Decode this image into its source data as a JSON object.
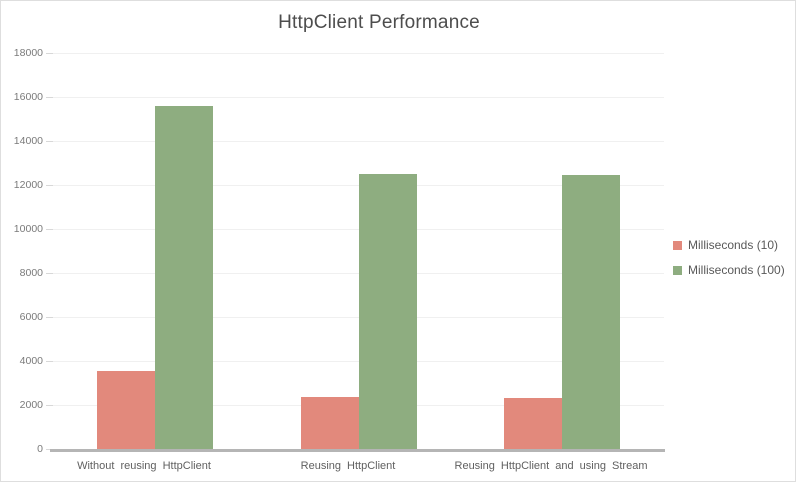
{
  "window": {
    "background": "#ffffff",
    "border_color": "#dedede"
  },
  "chart_data": {
    "type": "bar",
    "title": "HttpClient Performance",
    "categories": [
      "Without reusing HttpClient",
      "Reusing HttpClient",
      "Reusing HttpClient and using Stream"
    ],
    "series": [
      {
        "name": "Milliseconds (10)",
        "color": "#e2897c",
        "values": [
          3550,
          2350,
          2300
        ]
      },
      {
        "name": "Milliseconds (100)",
        "color": "#8ead80",
        "values": [
          15600,
          12500,
          12450
        ]
      }
    ],
    "ylim": [
      0,
      18000
    ],
    "ytick_step": 2000,
    "ytick_labels": [
      "0",
      "2000",
      "4000",
      "6000",
      "8000",
      "10000",
      "12000",
      "14000",
      "16000",
      "18000"
    ],
    "grid": true,
    "legend_position": "right",
    "xlabel": "",
    "ylabel": ""
  },
  "colors": {
    "title_text": "#4d4d4d",
    "y_axis_text": "#7a7a7a",
    "x_axis_text": "#606060",
    "legend_text": "#595959",
    "gridline": "#f0f0f0",
    "axis_line": "#b5b5b5"
  }
}
